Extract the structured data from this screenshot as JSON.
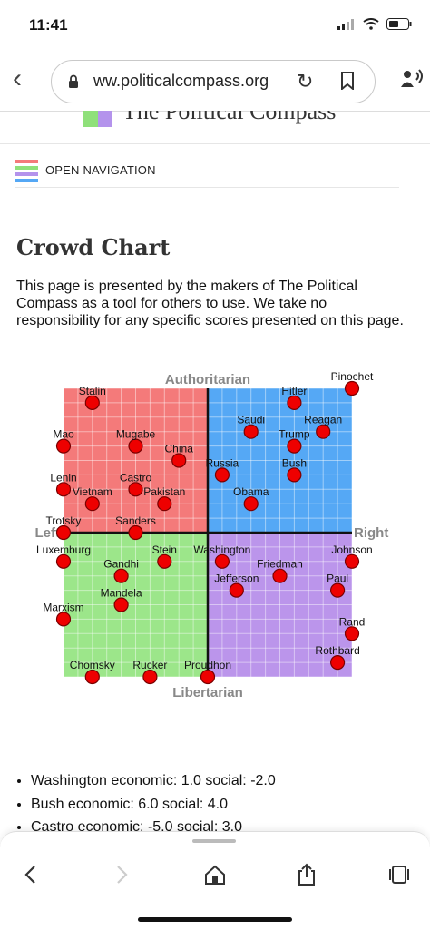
{
  "status": {
    "time": "11:41"
  },
  "browser": {
    "url": "ww.politicalcompass.org"
  },
  "site": {
    "title": "The Political Compass",
    "nav_label": "OPEN NAVIGATION"
  },
  "page": {
    "heading": "Crowd Chart",
    "intro": "This page is presented by the makers of The Political Compass as a tool for others to use. We take no responsibility for any specific scores presented on this page."
  },
  "chart_data": {
    "type": "scatter",
    "x_name": "economic",
    "y_name": "social",
    "xlim": [
      -10,
      10
    ],
    "ylim": [
      -10,
      10
    ],
    "grid": true,
    "axis_labels": {
      "top": "Authoritarian",
      "bottom": "Libertarian",
      "left": "Left",
      "right": "Right"
    },
    "quadrant_colors": {
      "top_left": "#f47a7a",
      "top_right": "#55a8f5",
      "bottom_left": "#9ce68a",
      "bottom_right": "#bb95eb"
    },
    "point_color": "#ee0000",
    "points": [
      {
        "label": "Stalin",
        "x": -8,
        "y": 9
      },
      {
        "label": "Hitler",
        "x": 6,
        "y": 9
      },
      {
        "label": "Pinochet",
        "x": 10,
        "y": 10
      },
      {
        "label": "Mugabe",
        "x": -5,
        "y": 6
      },
      {
        "label": "China",
        "x": -2,
        "y": 5
      },
      {
        "label": "Mao",
        "x": -10,
        "y": 6
      },
      {
        "label": "Saudi",
        "x": 3,
        "y": 7
      },
      {
        "label": "Reagan",
        "x": 8,
        "y": 7
      },
      {
        "label": "Trump",
        "x": 6,
        "y": 6
      },
      {
        "label": "Russia",
        "x": 1,
        "y": 4
      },
      {
        "label": "Bush",
        "x": 6,
        "y": 4
      },
      {
        "label": "Lenin",
        "x": -10,
        "y": 3
      },
      {
        "label": "Castro",
        "x": -5,
        "y": 3
      },
      {
        "label": "Vietnam",
        "x": -8,
        "y": 2
      },
      {
        "label": "Pakistan",
        "x": -3,
        "y": 2
      },
      {
        "label": "Obama",
        "x": 3,
        "y": 2
      },
      {
        "label": "Trotsky",
        "x": -10,
        "y": 0
      },
      {
        "label": "Sanders",
        "x": -5,
        "y": 0
      },
      {
        "label": "Luxemburg",
        "x": -10,
        "y": -2
      },
      {
        "label": "Stein",
        "x": -3,
        "y": -2
      },
      {
        "label": "Washington",
        "x": 1,
        "y": -2
      },
      {
        "label": "Johnson",
        "x": 10,
        "y": -2
      },
      {
        "label": "Gandhi",
        "x": -6,
        "y": -3
      },
      {
        "label": "Friedman",
        "x": 5,
        "y": -3
      },
      {
        "label": "Jefferson",
        "x": 2,
        "y": -4
      },
      {
        "label": "Paul",
        "x": 9,
        "y": -4
      },
      {
        "label": "Mandela",
        "x": -6,
        "y": -5
      },
      {
        "label": "Marxism",
        "x": -10,
        "y": -6
      },
      {
        "label": "Rand",
        "x": 10,
        "y": -7
      },
      {
        "label": "Rothbard",
        "x": 9,
        "y": -9
      },
      {
        "label": "Chomsky",
        "x": -8,
        "y": -10
      },
      {
        "label": "Rucker",
        "x": -4,
        "y": -10
      },
      {
        "label": "Proudhon",
        "x": 0,
        "y": -10
      }
    ]
  },
  "bullets": [
    {
      "text": "Washington economic: 1.0 social: -2.0"
    },
    {
      "text": "Bush economic: 6.0 social: 4.0"
    },
    {
      "text": "Castro economic: -5.0 social: 3.0"
    }
  ]
}
